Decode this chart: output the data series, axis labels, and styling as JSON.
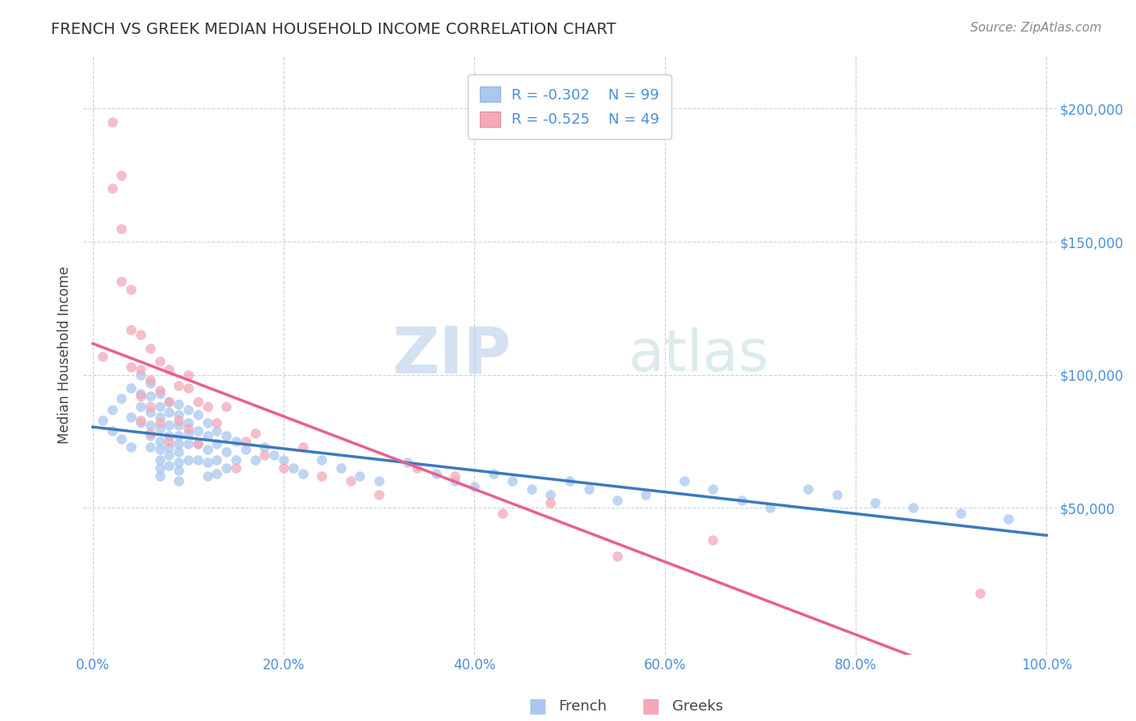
{
  "title": "FRENCH VS GREEK MEDIAN HOUSEHOLD INCOME CORRELATION CHART",
  "source": "Source: ZipAtlas.com",
  "ylabel": "Median Household Income",
  "watermark": "ZIPatlas",
  "french_R": -0.302,
  "french_N": 99,
  "greek_R": -0.525,
  "greek_N": 49,
  "french_color": "#a8c8f0",
  "greek_color": "#f4a8b8",
  "french_line_color": "#3a7abf",
  "greek_line_color": "#e8608a",
  "title_color": "#3a3a3a",
  "axis_label_color": "#444444",
  "tick_color": "#4a90d9",
  "grid_color": "#c8d4e0",
  "background_color": "#ffffff",
  "xlim": [
    -0.01,
    1.01
  ],
  "ylim": [
    -5000,
    220000
  ],
  "yticks": [
    50000,
    100000,
    150000,
    200000
  ],
  "ytick_labels": [
    "$50,000",
    "$100,000",
    "$150,000",
    "$200,000"
  ],
  "xticks": [
    0.0,
    0.2,
    0.4,
    0.6,
    0.8,
    1.0
  ],
  "xtick_labels": [
    "0.0%",
    "20.0%",
    "40.0%",
    "60.0%",
    "80.0%",
    "100.0%"
  ],
  "french_x": [
    0.01,
    0.02,
    0.02,
    0.03,
    0.03,
    0.04,
    0.04,
    0.04,
    0.05,
    0.05,
    0.05,
    0.05,
    0.06,
    0.06,
    0.06,
    0.06,
    0.06,
    0.06,
    0.07,
    0.07,
    0.07,
    0.07,
    0.07,
    0.07,
    0.07,
    0.07,
    0.07,
    0.08,
    0.08,
    0.08,
    0.08,
    0.08,
    0.08,
    0.08,
    0.09,
    0.09,
    0.09,
    0.09,
    0.09,
    0.09,
    0.09,
    0.09,
    0.09,
    0.1,
    0.1,
    0.1,
    0.1,
    0.1,
    0.11,
    0.11,
    0.11,
    0.11,
    0.12,
    0.12,
    0.12,
    0.12,
    0.12,
    0.13,
    0.13,
    0.13,
    0.13,
    0.14,
    0.14,
    0.14,
    0.15,
    0.15,
    0.16,
    0.17,
    0.18,
    0.19,
    0.2,
    0.21,
    0.22,
    0.24,
    0.26,
    0.28,
    0.3,
    0.33,
    0.36,
    0.38,
    0.4,
    0.42,
    0.44,
    0.46,
    0.48,
    0.5,
    0.52,
    0.55,
    0.58,
    0.62,
    0.65,
    0.68,
    0.71,
    0.75,
    0.78,
    0.82,
    0.86,
    0.91,
    0.96
  ],
  "french_y": [
    83000,
    87000,
    79000,
    91000,
    76000,
    95000,
    84000,
    73000,
    100000,
    93000,
    88000,
    82000,
    97000,
    92000,
    86000,
    81000,
    77000,
    73000,
    93000,
    88000,
    84000,
    80000,
    75000,
    72000,
    68000,
    65000,
    62000,
    90000,
    86000,
    81000,
    77000,
    73000,
    70000,
    66000,
    89000,
    85000,
    81000,
    77000,
    74000,
    71000,
    67000,
    64000,
    60000,
    87000,
    82000,
    78000,
    74000,
    68000,
    85000,
    79000,
    74000,
    68000,
    82000,
    77000,
    72000,
    67000,
    62000,
    79000,
    74000,
    68000,
    63000,
    77000,
    71000,
    65000,
    75000,
    68000,
    72000,
    68000,
    73000,
    70000,
    68000,
    65000,
    63000,
    68000,
    65000,
    62000,
    60000,
    67000,
    63000,
    60000,
    58000,
    63000,
    60000,
    57000,
    55000,
    60000,
    57000,
    53000,
    55000,
    60000,
    57000,
    53000,
    50000,
    57000,
    55000,
    52000,
    50000,
    48000,
    46000
  ],
  "greek_x": [
    0.01,
    0.02,
    0.02,
    0.03,
    0.03,
    0.03,
    0.04,
    0.04,
    0.04,
    0.05,
    0.05,
    0.05,
    0.05,
    0.06,
    0.06,
    0.06,
    0.06,
    0.07,
    0.07,
    0.07,
    0.08,
    0.08,
    0.08,
    0.09,
    0.09,
    0.1,
    0.1,
    0.1,
    0.11,
    0.11,
    0.12,
    0.13,
    0.14,
    0.15,
    0.16,
    0.17,
    0.18,
    0.2,
    0.22,
    0.24,
    0.27,
    0.3,
    0.34,
    0.38,
    0.43,
    0.48,
    0.55,
    0.65,
    0.93
  ],
  "greek_y": [
    107000,
    195000,
    170000,
    175000,
    155000,
    135000,
    132000,
    117000,
    103000,
    115000,
    102000,
    92000,
    83000,
    110000,
    98000,
    88000,
    78000,
    105000,
    94000,
    82000,
    102000,
    90000,
    75000,
    96000,
    83000,
    95000,
    100000,
    80000,
    90000,
    74000,
    88000,
    82000,
    88000,
    65000,
    75000,
    78000,
    70000,
    65000,
    73000,
    62000,
    60000,
    55000,
    65000,
    62000,
    48000,
    52000,
    32000,
    38000,
    18000
  ]
}
